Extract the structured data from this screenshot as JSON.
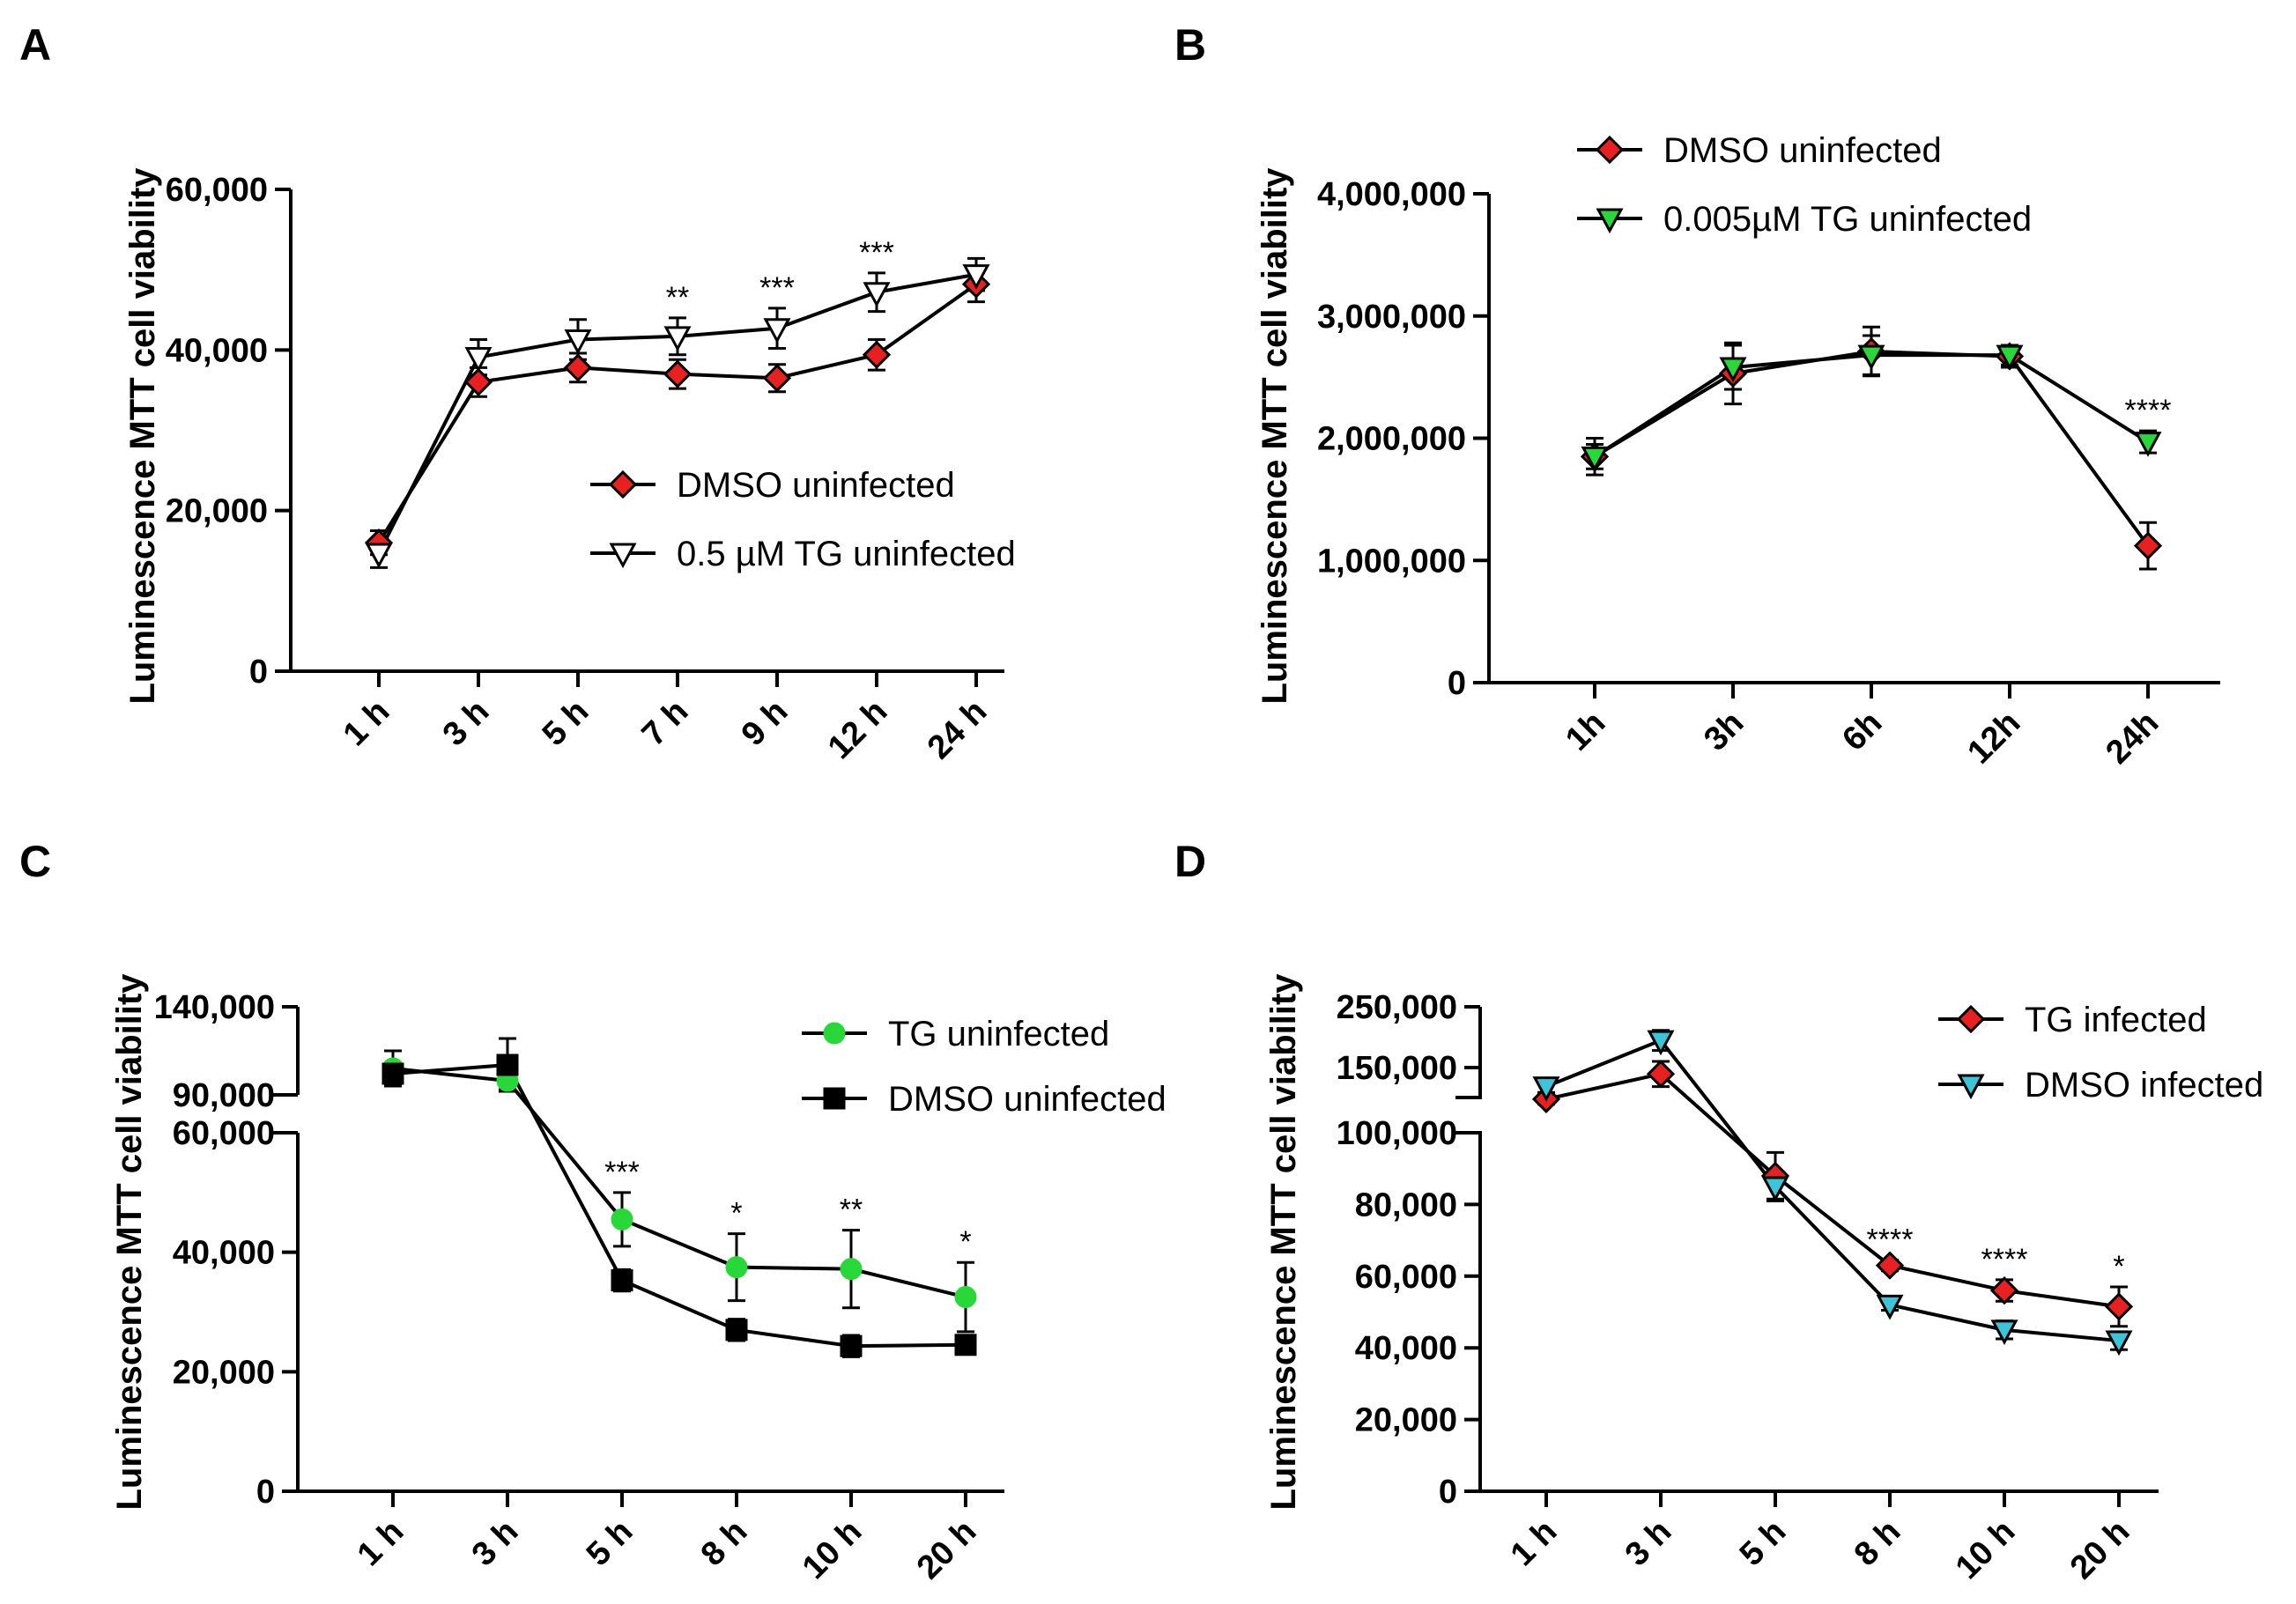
{
  "chart_data": [
    {
      "panel": "A",
      "type": "line",
      "ylabel": "Luminescence MTT cell viability",
      "ylim": [
        0,
        60000
      ],
      "yticks": [
        0,
        20000,
        40000,
        60000
      ],
      "ytick_labels": [
        "0",
        "20,000",
        "40,000",
        "60,000"
      ],
      "categories": [
        "1 h",
        "3 h",
        "5 h",
        "7 h",
        "9 h",
        "12 h",
        "24 h"
      ],
      "series": [
        {
          "name": "DMSO uninfected",
          "marker": "diamond",
          "color": "#e8201f",
          "values": [
            16000,
            36000,
            37800,
            37000,
            36500,
            39400,
            48200
          ],
          "errors": [
            1500,
            1800,
            1800,
            1800,
            1700,
            1900,
            2200
          ]
        },
        {
          "name": "0.5 µM TG uninfected",
          "marker": "triangle-down",
          "color": "#ffffff",
          "values": [
            14700,
            39100,
            41300,
            41700,
            42700,
            47200,
            49400
          ],
          "errors": [
            1800,
            2200,
            2500,
            2300,
            2500,
            2400,
            2000
          ]
        }
      ],
      "annotations": [
        {
          "category": "7 h",
          "text": "**"
        },
        {
          "category": "9 h",
          "text": "***"
        },
        {
          "category": "12 h",
          "text": "***"
        }
      ]
    },
    {
      "panel": "B",
      "type": "line",
      "ylabel": "Luminescence MTT cell viability",
      "ylim": [
        0,
        4000000
      ],
      "yticks": [
        0,
        1000000,
        2000000,
        3000000,
        4000000
      ],
      "ytick_labels": [
        "0",
        "1,000,000",
        "2,000,000",
        "3,000,000",
        "4,000,000"
      ],
      "categories": [
        "1h",
        "3h",
        "6h",
        "12h",
        "24h"
      ],
      "series": [
        {
          "name": "DMSO uninfected",
          "marker": "diamond",
          "color": "#e8201f",
          "values": [
            1850000,
            2530000,
            2710000,
            2670000,
            1120000
          ],
          "errors": [
            150000,
            250000,
            200000,
            90000,
            190000
          ]
        },
        {
          "name": "0.005µM TG uninfected",
          "marker": "triangle-down",
          "color": "#27d838",
          "values": [
            1850000,
            2580000,
            2680000,
            2680000,
            1970000
          ],
          "errors": [
            100000,
            180000,
            160000,
            80000,
            90000
          ]
        }
      ],
      "annotations": [
        {
          "category": "24h",
          "text": "****"
        }
      ]
    },
    {
      "panel": "C",
      "type": "line",
      "ylabel": "Luminescence MTT cell viability",
      "ylim_lower": [
        0,
        60000
      ],
      "ylim_upper": [
        90000,
        140000
      ],
      "yticks": [
        0,
        20000,
        40000,
        60000,
        90000,
        140000
      ],
      "ytick_labels": [
        "0",
        "20,000",
        "40,000",
        "60,000",
        "90,000",
        "140,000"
      ],
      "categories": [
        "1 h",
        "3 h",
        "5 h",
        "8 h",
        "10 h",
        "20 h"
      ],
      "series": [
        {
          "name": "TG uninfected",
          "marker": "circle",
          "color": "#27d838",
          "values": [
            105000,
            98000,
            45500,
            37500,
            37200,
            32500
          ],
          "errors": [
            10000,
            5000,
            4500,
            5600,
            6500,
            5800
          ]
        },
        {
          "name": "DMSO uninfected",
          "marker": "square",
          "color": "#000000",
          "values": [
            102000,
            107000,
            35300,
            27000,
            24300,
            24500
          ],
          "errors": [
            6000,
            15000,
            1800,
            1800,
            1800,
            1400
          ]
        }
      ],
      "annotations": [
        {
          "category": "5 h",
          "text": "***"
        },
        {
          "category": "8 h",
          "text": "*"
        },
        {
          "category": "10 h",
          "text": "**"
        },
        {
          "category": "20 h",
          "text": "*"
        }
      ]
    },
    {
      "panel": "D",
      "type": "line",
      "ylabel": "Luminescence MTT cell viability",
      "ylim_lower": [
        0,
        100000
      ],
      "ylim_upper": [
        100000,
        250000
      ],
      "yticks": [
        0,
        20000,
        40000,
        60000,
        80000,
        100000,
        150000,
        250000
      ],
      "ytick_labels": [
        "0",
        "20,000",
        "40,000",
        "60,000",
        "80,000",
        "100,000",
        "150,000",
        "250,000"
      ],
      "categories": [
        "1 h",
        "3 h",
        "5 h",
        "8 h",
        "10 h",
        "20 h"
      ],
      "series": [
        {
          "name": "TG infected",
          "marker": "diamond",
          "color": "#e8201f",
          "values": [
            140000,
            170000,
            88000,
            63000,
            56000,
            51500
          ],
          "errors": [
            6000,
            15000,
            6500,
            1500,
            3000,
            5500
          ]
        },
        {
          "name": "DMSO infected",
          "marker": "triangle-down",
          "color": "#3ec4d8",
          "values": [
            155000,
            210000,
            85000,
            52000,
            45000,
            42000
          ],
          "errors": [
            7000,
            12000,
            4000,
            1500,
            2500,
            2500
          ]
        }
      ],
      "annotations": [
        {
          "category": "8 h",
          "text": "****"
        },
        {
          "category": "10 h",
          "text": "****"
        },
        {
          "category": "20 h",
          "text": "*"
        }
      ]
    }
  ]
}
